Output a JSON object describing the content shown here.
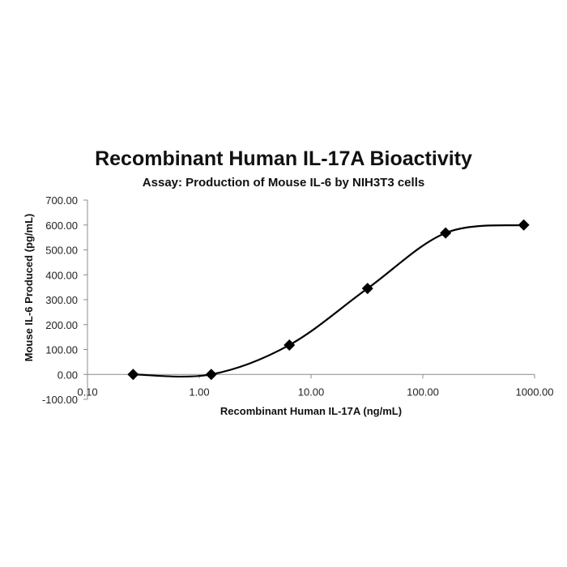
{
  "chart_data": {
    "type": "scatter",
    "title": "Recombinant Human IL-17A Bioactivity",
    "subtitle": "Assay: Production of Mouse IL-6 by NIH3T3 cells",
    "xlabel": "Recombinant Human IL-17A (ng/mL)",
    "ylabel": "Mouse IL-6 Produced (pg/mL)",
    "x_scale": "log",
    "xlim": [
      0.1,
      1000
    ],
    "ylim": [
      -100,
      700
    ],
    "x_ticks": [
      "0.10",
      "1.00",
      "10.00",
      "100.00",
      "1000.00"
    ],
    "y_ticks": [
      "-100.00",
      "0.00",
      "100.00",
      "200.00",
      "300.00",
      "400.00",
      "500.00",
      "600.00",
      "700.00"
    ],
    "grid": false,
    "legend": "none",
    "line": "smoothed",
    "marker": "diamond",
    "color": "#000000",
    "series": [
      {
        "x": [
          0.256,
          1.28,
          6.4,
          32,
          160,
          800
        ],
        "y": [
          0,
          0,
          118,
          345,
          568,
          600
        ]
      }
    ]
  }
}
